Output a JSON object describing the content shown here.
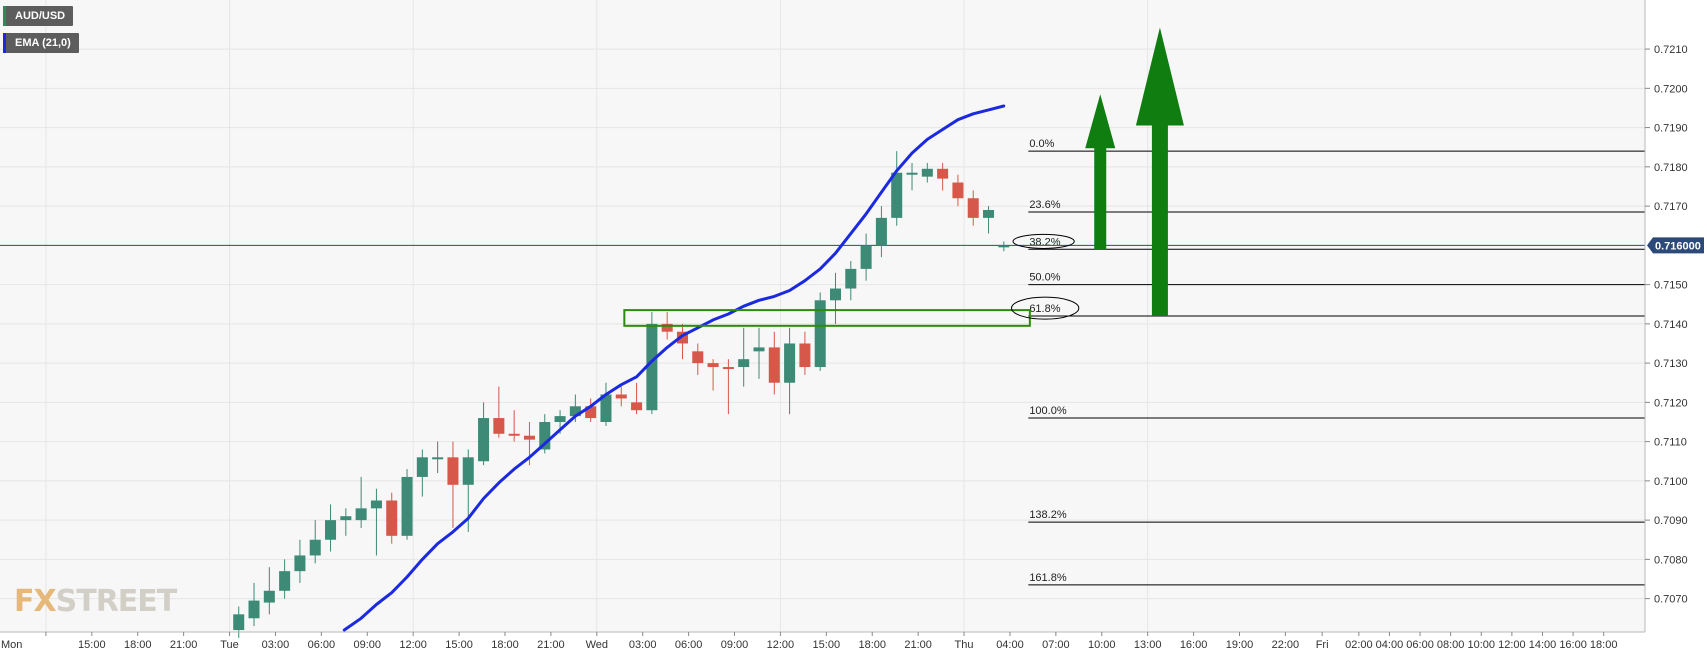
{
  "legend": {
    "symbol": "AUD/USD",
    "indicator": "EMA (21,0)",
    "symbol_color": "#2e8b57",
    "indicator_color": "#1b2ae0"
  },
  "logo": {
    "prefix": "FX",
    "rest": "STREET"
  },
  "current_price": {
    "value": 0.716,
    "label": "0.716000",
    "color": "#2b4a7a"
  },
  "chart_data": {
    "type": "candlestick",
    "ylim": [
      0.70615,
      0.72225
    ],
    "y_ticks": [
      0.707,
      0.708,
      0.709,
      0.71,
      0.711,
      0.712,
      0.713,
      0.714,
      0.715,
      0.717,
      0.718,
      0.719,
      0.72,
      0.721
    ],
    "y_tick_labels": [
      "0.7070",
      "0.7080",
      "0.7090",
      "0.7100",
      "0.7110",
      "0.7120",
      "0.7130",
      "0.7140",
      "0.7150",
      "0.7170",
      "0.7180",
      "0.7190",
      "0.7200",
      "0.7210"
    ],
    "x_range_hours": [
      -3,
      104.5
    ],
    "x_ticks": [
      {
        "h": 0,
        "label": "Mon"
      },
      {
        "h": 3,
        "label": "15:00"
      },
      {
        "h": 6,
        "label": "18:00"
      },
      {
        "h": 9,
        "label": "21:00"
      },
      {
        "h": 12,
        "label": "Tue"
      },
      {
        "h": 15,
        "label": "03:00"
      },
      {
        "h": 18,
        "label": "06:00"
      },
      {
        "h": 21,
        "label": "09:00"
      },
      {
        "h": 24,
        "label": "12:00"
      },
      {
        "h": 27,
        "label": "15:00"
      },
      {
        "h": 30,
        "label": "18:00"
      },
      {
        "h": 33,
        "label": "21:00"
      },
      {
        "h": 36,
        "label": "Wed"
      },
      {
        "h": 39,
        "label": "03:00"
      },
      {
        "h": 42,
        "label": "06:00"
      },
      {
        "h": 45,
        "label": "09:00"
      },
      {
        "h": 48,
        "label": "12:00"
      },
      {
        "h": 51,
        "label": "15:00"
      },
      {
        "h": 54,
        "label": "18:00"
      },
      {
        "h": 57,
        "label": "21:00"
      },
      {
        "h": 60,
        "label": "Thu"
      },
      {
        "h": 63,
        "label": "04:00"
      },
      {
        "h": 66,
        "label": "07:00"
      },
      {
        "h": 69,
        "label": "10:00"
      },
      {
        "h": 72,
        "label": "13:00"
      },
      {
        "h": 75,
        "label": "16:00"
      },
      {
        "h": 78,
        "label": "19:00"
      },
      {
        "h": 81,
        "label": "22:00"
      },
      {
        "h": 83.4,
        "label": "Fri"
      },
      {
        "h": 85.8,
        "label": "02:00"
      },
      {
        "h": 87.8,
        "label": "04:00"
      },
      {
        "h": 89.8,
        "label": "06:00"
      },
      {
        "h": 91.8,
        "label": "08:00"
      },
      {
        "h": 93.8,
        "label": "10:00"
      },
      {
        "h": 95.8,
        "label": "12:00"
      },
      {
        "h": 97.8,
        "label": "14:00"
      },
      {
        "h": 99.8,
        "label": "16:00"
      },
      {
        "h": 101.8,
        "label": "18:00"
      }
    ],
    "candles": [
      {
        "h": 12.6,
        "o": 0.7062,
        "c": 0.7066,
        "hi": 0.7068,
        "lo": 0.706
      },
      {
        "h": 13.6,
        "o": 0.7065,
        "c": 0.70695,
        "hi": 0.7074,
        "lo": 0.7063
      },
      {
        "h": 14.6,
        "o": 0.7069,
        "c": 0.7072,
        "hi": 0.7078,
        "lo": 0.7066
      },
      {
        "h": 15.6,
        "o": 0.7072,
        "c": 0.7077,
        "hi": 0.708,
        "lo": 0.707
      },
      {
        "h": 16.6,
        "o": 0.7077,
        "c": 0.7081,
        "hi": 0.7085,
        "lo": 0.7074
      },
      {
        "h": 17.6,
        "o": 0.7081,
        "c": 0.7085,
        "hi": 0.709,
        "lo": 0.7079
      },
      {
        "h": 18.6,
        "o": 0.7085,
        "c": 0.709,
        "hi": 0.7094,
        "lo": 0.7082
      },
      {
        "h": 19.6,
        "o": 0.709,
        "c": 0.7091,
        "hi": 0.7093,
        "lo": 0.7086
      },
      {
        "h": 20.6,
        "o": 0.709,
        "c": 0.7093,
        "hi": 0.7101,
        "lo": 0.7088
      },
      {
        "h": 21.6,
        "o": 0.7093,
        "c": 0.7095,
        "hi": 0.7098,
        "lo": 0.7081
      },
      {
        "h": 22.6,
        "o": 0.7095,
        "c": 0.7086,
        "hi": 0.7097,
        "lo": 0.7084
      },
      {
        "h": 23.6,
        "o": 0.7086,
        "c": 0.7101,
        "hi": 0.7103,
        "lo": 0.7085
      },
      {
        "h": 24.6,
        "o": 0.7101,
        "c": 0.7106,
        "hi": 0.7108,
        "lo": 0.7096
      },
      {
        "h": 25.6,
        "o": 0.7106,
        "c": 0.7106,
        "hi": 0.711,
        "lo": 0.7102
      },
      {
        "h": 26.6,
        "o": 0.7106,
        "c": 0.7099,
        "hi": 0.711,
        "lo": 0.7088
      },
      {
        "h": 27.6,
        "o": 0.7099,
        "c": 0.7106,
        "hi": 0.7108,
        "lo": 0.7087
      },
      {
        "h": 28.6,
        "o": 0.7105,
        "c": 0.7116,
        "hi": 0.712,
        "lo": 0.7104
      },
      {
        "h": 29.6,
        "o": 0.7116,
        "c": 0.7112,
        "hi": 0.7124,
        "lo": 0.7111
      },
      {
        "h": 30.6,
        "o": 0.7112,
        "c": 0.71115,
        "hi": 0.7118,
        "lo": 0.711
      },
      {
        "h": 31.6,
        "o": 0.71115,
        "c": 0.71105,
        "hi": 0.7115,
        "lo": 0.7104
      },
      {
        "h": 32.6,
        "o": 0.7108,
        "c": 0.7115,
        "hi": 0.7117,
        "lo": 0.7107
      },
      {
        "h": 33.6,
        "o": 0.7115,
        "c": 0.71165,
        "hi": 0.7118,
        "lo": 0.7112
      },
      {
        "h": 34.6,
        "o": 0.71165,
        "c": 0.7119,
        "hi": 0.7122,
        "lo": 0.7115
      },
      {
        "h": 35.6,
        "o": 0.7119,
        "c": 0.7116,
        "hi": 0.7121,
        "lo": 0.7115
      },
      {
        "h": 36.6,
        "o": 0.7115,
        "c": 0.7122,
        "hi": 0.7125,
        "lo": 0.7114
      },
      {
        "h": 37.6,
        "o": 0.7122,
        "c": 0.7121,
        "hi": 0.7124,
        "lo": 0.7119
      },
      {
        "h": 38.6,
        "o": 0.712,
        "c": 0.7118,
        "hi": 0.7125,
        "lo": 0.7117
      },
      {
        "h": 39.6,
        "o": 0.7118,
        "c": 0.714,
        "hi": 0.7143,
        "lo": 0.7117
      },
      {
        "h": 40.6,
        "o": 0.714,
        "c": 0.7138,
        "hi": 0.7143,
        "lo": 0.7136
      },
      {
        "h": 41.6,
        "o": 0.7138,
        "c": 0.7135,
        "hi": 0.714,
        "lo": 0.7131
      },
      {
        "h": 42.6,
        "o": 0.7133,
        "c": 0.713,
        "hi": 0.7135,
        "lo": 0.7127
      },
      {
        "h": 43.6,
        "o": 0.713,
        "c": 0.7129,
        "hi": 0.7131,
        "lo": 0.7123
      },
      {
        "h": 44.6,
        "o": 0.7129,
        "c": 0.71285,
        "hi": 0.7131,
        "lo": 0.7117
      },
      {
        "h": 45.6,
        "o": 0.7129,
        "c": 0.7131,
        "hi": 0.7139,
        "lo": 0.7124
      },
      {
        "h": 46.6,
        "o": 0.7133,
        "c": 0.7134,
        "hi": 0.7139,
        "lo": 0.7126
      },
      {
        "h": 47.6,
        "o": 0.7134,
        "c": 0.7125,
        "hi": 0.7138,
        "lo": 0.7122
      },
      {
        "h": 48.6,
        "o": 0.7125,
        "c": 0.7135,
        "hi": 0.7139,
        "lo": 0.7117
      },
      {
        "h": 49.6,
        "o": 0.7135,
        "c": 0.7129,
        "hi": 0.7138,
        "lo": 0.7127
      },
      {
        "h": 50.6,
        "o": 0.7129,
        "c": 0.7146,
        "hi": 0.7148,
        "lo": 0.7128
      },
      {
        "h": 51.6,
        "o": 0.7146,
        "c": 0.7149,
        "hi": 0.7153,
        "lo": 0.714
      },
      {
        "h": 52.6,
        "o": 0.7149,
        "c": 0.7154,
        "hi": 0.7156,
        "lo": 0.7146
      },
      {
        "h": 53.6,
        "o": 0.7154,
        "c": 0.716,
        "hi": 0.7163,
        "lo": 0.7151
      },
      {
        "h": 54.6,
        "o": 0.716,
        "c": 0.7167,
        "hi": 0.717,
        "lo": 0.7157
      },
      {
        "h": 55.6,
        "o": 0.7167,
        "c": 0.71785,
        "hi": 0.7184,
        "lo": 0.7165
      },
      {
        "h": 56.6,
        "o": 0.71785,
        "c": 0.71785,
        "hi": 0.7181,
        "lo": 0.7174
      },
      {
        "h": 57.6,
        "o": 0.71775,
        "c": 0.71795,
        "hi": 0.7181,
        "lo": 0.7176
      },
      {
        "h": 58.6,
        "o": 0.71795,
        "c": 0.7177,
        "hi": 0.7181,
        "lo": 0.7174
      },
      {
        "h": 59.6,
        "o": 0.7176,
        "c": 0.7172,
        "hi": 0.7178,
        "lo": 0.717
      },
      {
        "h": 60.6,
        "o": 0.7172,
        "c": 0.7167,
        "hi": 0.7174,
        "lo": 0.7165
      },
      {
        "h": 61.6,
        "o": 0.7167,
        "c": 0.7169,
        "hi": 0.717,
        "lo": 0.7163
      },
      {
        "h": 62.6,
        "o": 0.716,
        "c": 0.716,
        "hi": 0.7161,
        "lo": 0.71585
      }
    ],
    "ema": {
      "name": "EMA (21,0)",
      "color": "#1b2ae0",
      "points": [
        [
          19.5,
          0.7062
        ],
        [
          20.6,
          0.7065
        ],
        [
          21.6,
          0.70685
        ],
        [
          22.6,
          0.70715
        ],
        [
          23.6,
          0.70755
        ],
        [
          24.6,
          0.708
        ],
        [
          25.6,
          0.7084
        ],
        [
          26.6,
          0.7087
        ],
        [
          27.6,
          0.70905
        ],
        [
          28.6,
          0.70955
        ],
        [
          29.6,
          0.70995
        ],
        [
          30.6,
          0.7103
        ],
        [
          31.6,
          0.7106
        ],
        [
          32.6,
          0.71095
        ],
        [
          33.6,
          0.7113
        ],
        [
          34.6,
          0.71165
        ],
        [
          35.6,
          0.7119
        ],
        [
          36.6,
          0.7122
        ],
        [
          37.6,
          0.71245
        ],
        [
          38.6,
          0.71265
        ],
        [
          39.6,
          0.71305
        ],
        [
          40.6,
          0.7134
        ],
        [
          41.6,
          0.7137
        ],
        [
          42.6,
          0.7139
        ],
        [
          43.6,
          0.7141
        ],
        [
          44.6,
          0.71425
        ],
        [
          45.6,
          0.71445
        ],
        [
          46.6,
          0.7146
        ],
        [
          47.6,
          0.7147
        ],
        [
          48.6,
          0.71485
        ],
        [
          49.6,
          0.7151
        ],
        [
          50.6,
          0.7154
        ],
        [
          51.6,
          0.7158
        ],
        [
          52.6,
          0.7163
        ],
        [
          53.6,
          0.7168
        ],
        [
          54.6,
          0.71735
        ],
        [
          55.6,
          0.7179
        ],
        [
          56.6,
          0.71835
        ],
        [
          57.6,
          0.7187
        ],
        [
          58.6,
          0.71895
        ],
        [
          59.6,
          0.7192
        ],
        [
          60.6,
          0.71935
        ],
        [
          61.6,
          0.71945
        ],
        [
          62.6,
          0.71955
        ]
      ]
    },
    "fibonacci": {
      "x_start_h": 64.2,
      "levels": [
        {
          "label": "0.0%",
          "value": 0.7184
        },
        {
          "label": "23.6%",
          "value": 0.71685
        },
        {
          "label": "38.2%",
          "value": 0.7159
        },
        {
          "label": "50.0%",
          "value": 0.715
        },
        {
          "label": "61.8%",
          "value": 0.7142
        },
        {
          "label": "100.0%",
          "value": 0.7116
        },
        {
          "label": "138.2%",
          "value": 0.70895
        },
        {
          "label": "161.8%",
          "value": 0.70735
        }
      ]
    },
    "annotations": {
      "ellipses": [
        {
          "level": "38.2%",
          "cx_h": 65.2,
          "cy": 0.7161,
          "rx_h": 2.0,
          "ry": 0.00018
        },
        {
          "level": "61.8%",
          "cx_h": 65.3,
          "cy": 0.7144,
          "rx_h": 2.2,
          "ry": 0.00028
        }
      ],
      "zone": {
        "h_start": 37.8,
        "h_end": 64.3,
        "top": 0.71435,
        "bottom": 0.71395,
        "color": "#2f8a0f"
      },
      "arrows": [
        {
          "x_h": 68.9,
          "from": 0.7159,
          "to": 0.71985,
          "color": "#0f7d0f",
          "size": "small"
        },
        {
          "x_h": 72.8,
          "from": 0.7142,
          "to": 0.72155,
          "color": "#0f7d0f",
          "size": "large"
        }
      ]
    }
  }
}
